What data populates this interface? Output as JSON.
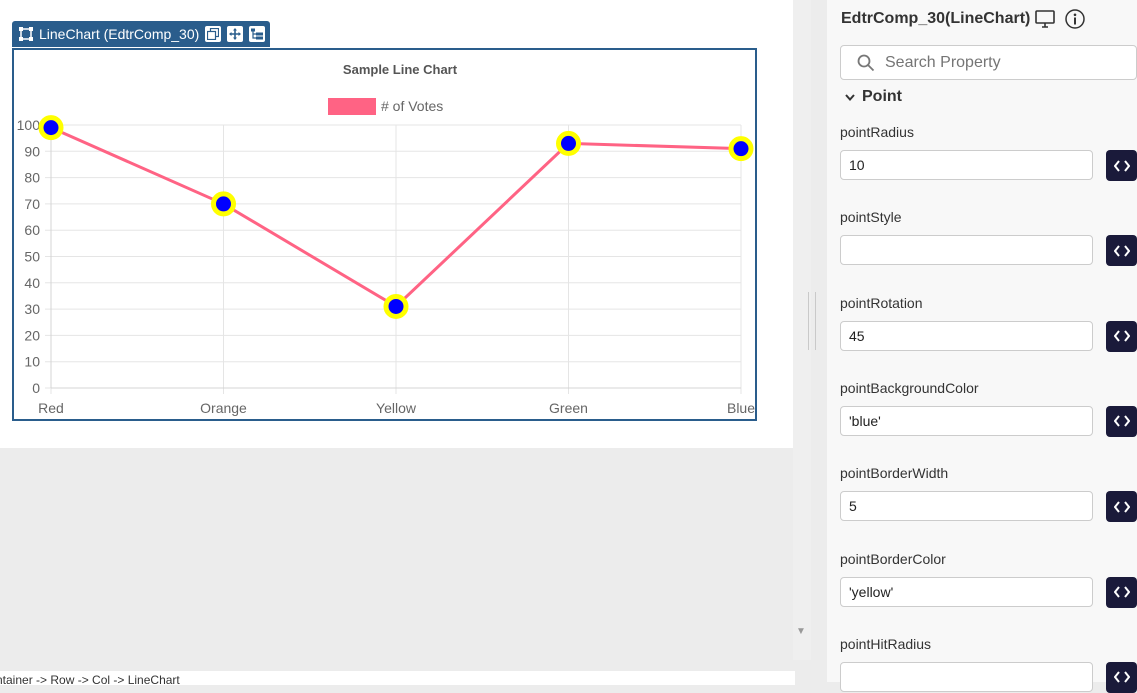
{
  "component_tab": {
    "title": "LineChart (EdtrComp_30)"
  },
  "chart_data": {
    "type": "line",
    "title": "Sample Line Chart",
    "categories": [
      "Red",
      "Orange",
      "Yellow",
      "Green",
      "Blue"
    ],
    "series": [
      {
        "name": "# of Votes",
        "values": [
          99,
          70,
          31,
          93,
          91
        ]
      }
    ],
    "ylim": [
      0,
      100
    ],
    "yticks": [
      "0",
      "10",
      "20",
      "30",
      "40",
      "50",
      "60",
      "70",
      "80",
      "90",
      "100"
    ],
    "grid": true,
    "legend": "top",
    "colors": {
      "line": "#ff6384",
      "point_fill": "#0000ff",
      "point_border": "#ffff00",
      "grid": "#e5e5e5"
    }
  },
  "panel": {
    "title": "EdtrComp_30(LineChart)",
    "search_placeholder": "Search Property",
    "section": "Point",
    "properties": [
      {
        "label": "pointRadius",
        "value": "10"
      },
      {
        "label": "pointStyle",
        "value": ""
      },
      {
        "label": "pointRotation",
        "value": "45"
      },
      {
        "label": "pointBackgroundColor",
        "value": "'blue'"
      },
      {
        "label": "pointBorderWidth",
        "value": "5"
      },
      {
        "label": "pointBorderColor",
        "value": "'yellow'"
      },
      {
        "label": "pointHitRadius",
        "value": ""
      }
    ]
  },
  "breadcrumb": "ntainer -> Row -> Col -> LineChart",
  "colors": {
    "accent": "#2a5d8c",
    "code_button": "#1a1a3a"
  }
}
